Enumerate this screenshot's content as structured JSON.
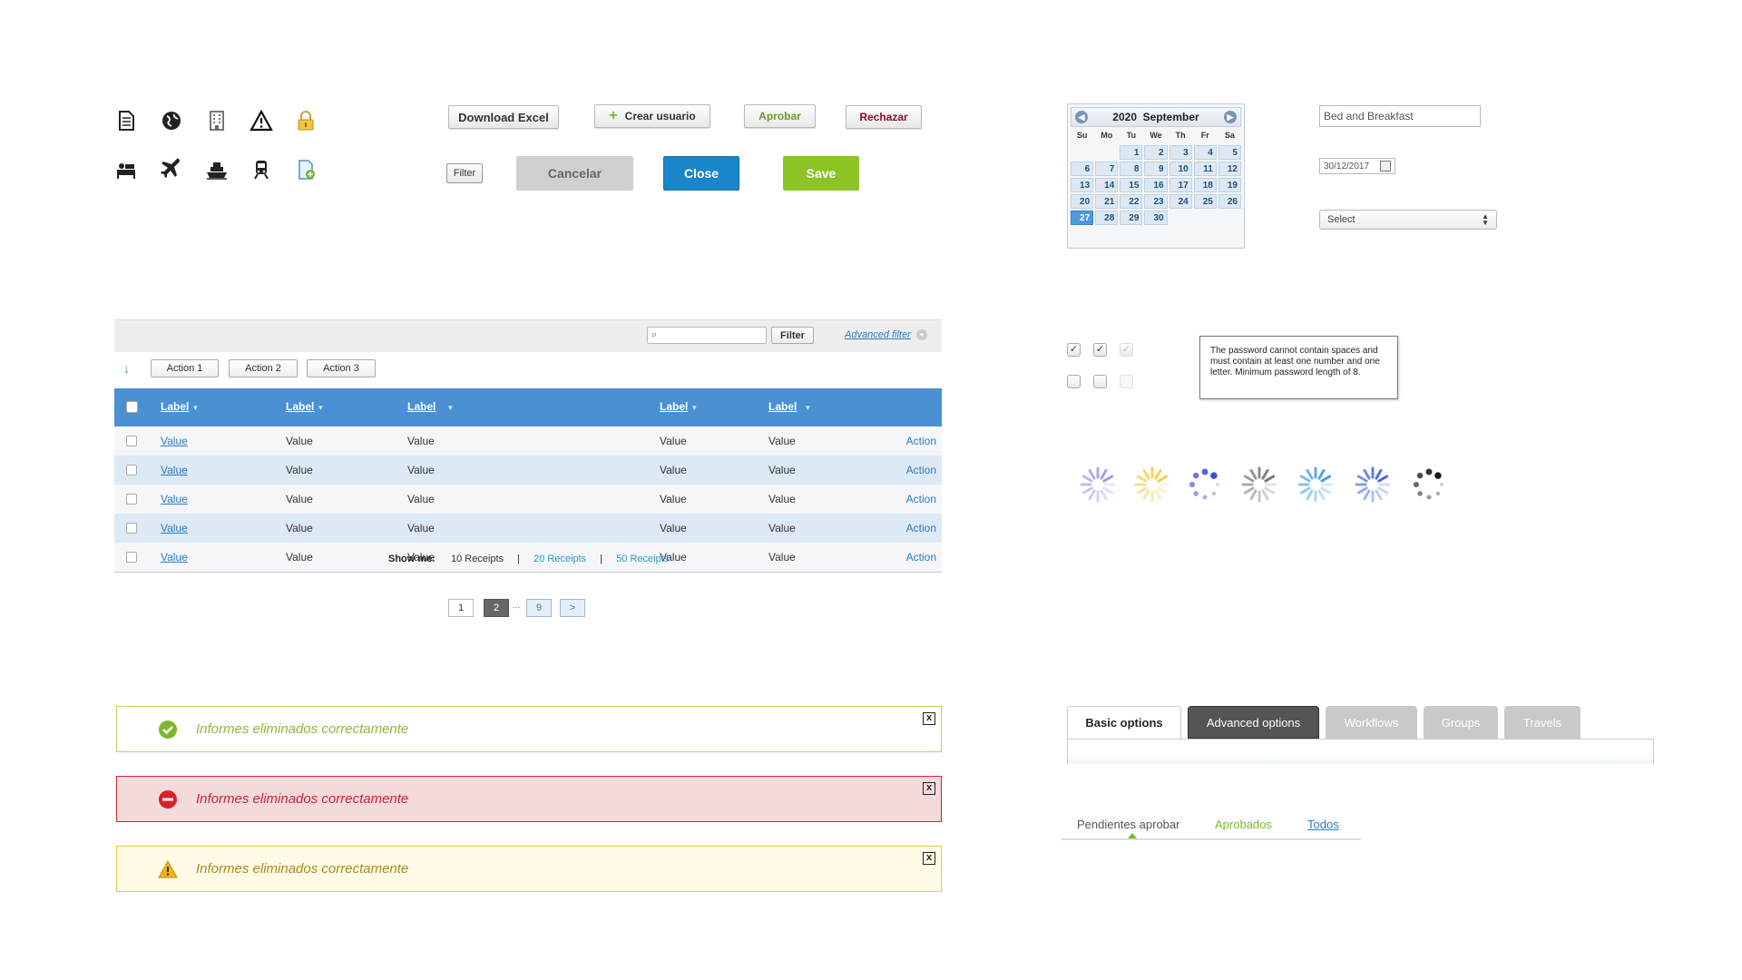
{
  "icons_row1": [
    "document-icon",
    "globe-icon",
    "building-icon",
    "warning-icon",
    "lock-icon"
  ],
  "icons_row2": [
    "bed-icon",
    "airplane-icon",
    "ship-icon",
    "train-icon",
    "new-document-icon"
  ],
  "buttons": {
    "download_excel": "Download Excel",
    "crear_usuario": "Crear usuario",
    "aprobar": "Aprobar",
    "rechazar": "Rechazar",
    "filter": "Filter",
    "cancelar": "Cancelar",
    "close": "Close",
    "save": "Save"
  },
  "calendar": {
    "year": "2020",
    "month": "September",
    "day_names": [
      "Su",
      "Mo",
      "Tu",
      "We",
      "Th",
      "Fr",
      "Sa"
    ],
    "leading_blanks": 2,
    "days": [
      "1",
      "2",
      "3",
      "4",
      "5",
      "6",
      "7",
      "8",
      "9",
      "10",
      "11",
      "12",
      "13",
      "14",
      "15",
      "16",
      "17",
      "18",
      "19",
      "20",
      "21",
      "22",
      "23",
      "24",
      "25",
      "26",
      "27",
      "28",
      "29",
      "30"
    ],
    "selected_day": "27"
  },
  "form": {
    "text_value": "Bed and Breakfast",
    "date_value": "30/12/2017",
    "select_value": "Select"
  },
  "table": {
    "advanced_filter": "Advanced filter",
    "filter_button": "Filter",
    "actions": [
      "Action 1",
      "Action 2",
      "Action 3"
    ],
    "headers": [
      "Label",
      "Label",
      "Label",
      "Label",
      "Label"
    ],
    "rows": [
      [
        "Value",
        "Value",
        "Value",
        "Value",
        "Value",
        "Action"
      ],
      [
        "Value",
        "Value",
        "Value",
        "Value",
        "Value",
        "Action"
      ],
      [
        "Value",
        "Value",
        "Value",
        "Value",
        "Value",
        "Action"
      ],
      [
        "Value",
        "Value",
        "Value",
        "Value",
        "Value",
        "Action"
      ],
      [
        "Value",
        "Value",
        "Value",
        "Value",
        "Value",
        "Action"
      ]
    ],
    "show_me_label": "Show me:",
    "receipts_10": "10 Receipts",
    "receipts_20": "20 Receipts",
    "receipts_50": "50 Receipts",
    "separator": "|"
  },
  "pagination": {
    "page_1": "1",
    "page_2": "2",
    "ellipsis": "...",
    "page_9": "9",
    "next": ">"
  },
  "alerts": {
    "success": "Informes eliminados correctamente",
    "error": "Informes eliminados correctamente",
    "warning": "Informes eliminados correctamente",
    "close_symbol": "x"
  },
  "tooltip": "The password cannot contain spaces and must contain at least one number and one letter. Minimum password length of 8.",
  "tabs": [
    "Basic options",
    "Advanced options",
    "Workflows",
    "Groups",
    "Travels"
  ],
  "subtabs": [
    "Pendientes aprobar",
    "Aprobados",
    "Todos"
  ],
  "colors": {
    "primary_blue": "#1a86c9",
    "save_green": "#8cc325",
    "table_header": "#4a90d2",
    "success": "#a6c84a",
    "error": "#c9243a",
    "warning": "#e6c94a"
  }
}
